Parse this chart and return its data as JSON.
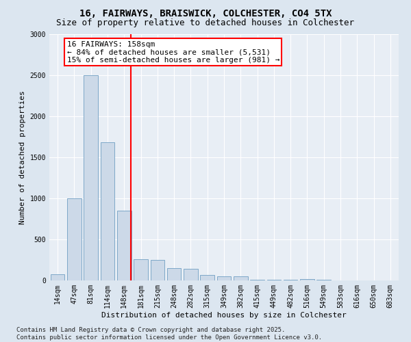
{
  "title": "16, FAIRWAYS, BRAISWICK, COLCHESTER, CO4 5TX",
  "subtitle": "Size of property relative to detached houses in Colchester",
  "xlabel": "Distribution of detached houses by size in Colchester",
  "ylabel": "Number of detached properties",
  "bar_color": "#ccd9e8",
  "bar_edge_color": "#6f9ec2",
  "background_color": "#dce6f0",
  "plot_bg_color": "#e8eef5",
  "categories": [
    "14sqm",
    "47sqm",
    "81sqm",
    "114sqm",
    "148sqm",
    "181sqm",
    "215sqm",
    "248sqm",
    "282sqm",
    "315sqm",
    "349sqm",
    "382sqm",
    "415sqm",
    "449sqm",
    "482sqm",
    "516sqm",
    "549sqm",
    "583sqm",
    "616sqm",
    "650sqm",
    "683sqm"
  ],
  "values": [
    75,
    1000,
    2500,
    1680,
    850,
    260,
    250,
    150,
    140,
    70,
    50,
    50,
    10,
    5,
    5,
    20,
    5,
    2,
    1,
    1,
    1
  ],
  "ylim": [
    0,
    3000
  ],
  "yticks": [
    0,
    500,
    1000,
    1500,
    2000,
    2500,
    3000
  ],
  "property_label": "16 FAIRWAYS: 158sqm",
  "annotation_line1": "← 84% of detached houses are smaller (5,531)",
  "annotation_line2": "15% of semi-detached houses are larger (981) →",
  "vline_x_index": 4.42,
  "footer_line1": "Contains HM Land Registry data © Crown copyright and database right 2025.",
  "footer_line2": "Contains public sector information licensed under the Open Government Licence v3.0.",
  "title_fontsize": 10,
  "subtitle_fontsize": 9,
  "tick_fontsize": 7,
  "annotation_fontsize": 8,
  "ylabel_fontsize": 8,
  "xlabel_fontsize": 8,
  "footer_fontsize": 6.5
}
